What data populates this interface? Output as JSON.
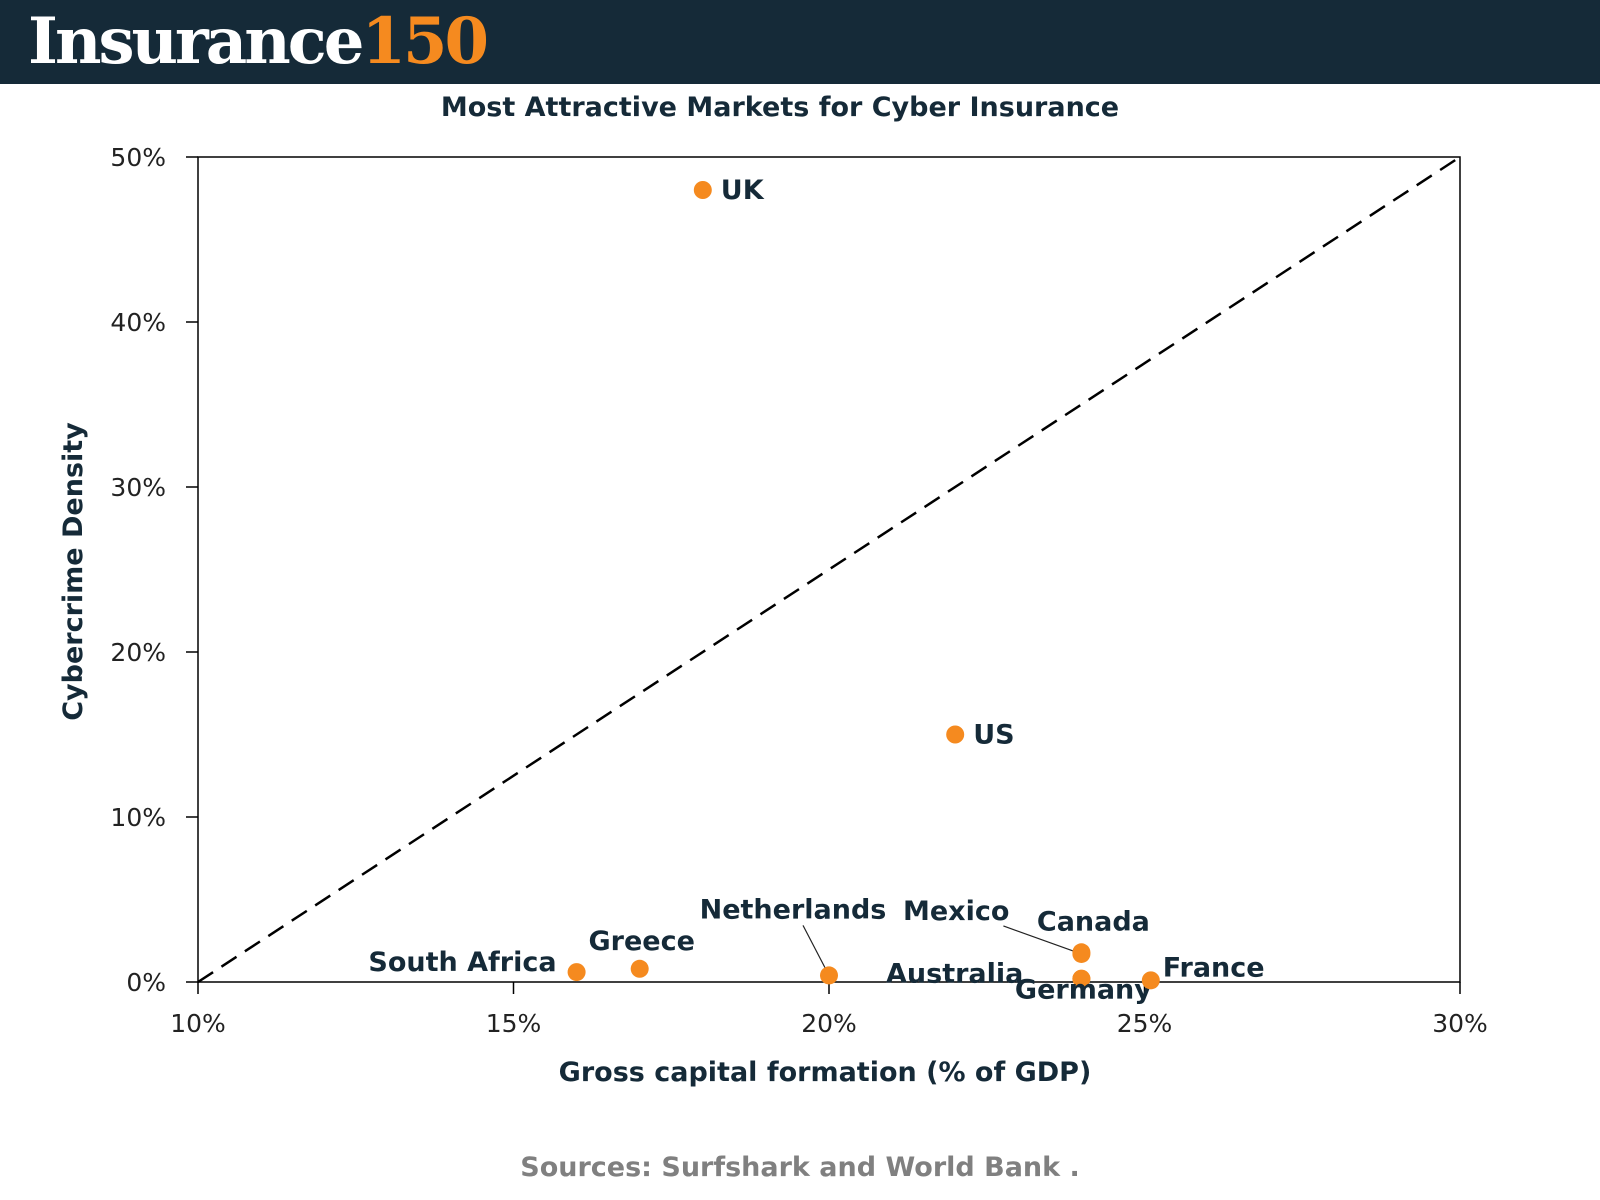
{
  "header": {
    "logo_word": "Insurance",
    "logo_number": "150",
    "background": "#152a38",
    "accent": "#f58a1f"
  },
  "source_text": "Sources: Surfshark and World Bank .",
  "chart_data": {
    "type": "scatter",
    "title": "Most Attractive Markets for Cyber Insurance",
    "xlabel": "Gross capital formation (% of GDP)",
    "ylabel": "Cybercrime Density",
    "xlim": [
      10,
      30
    ],
    "ylim": [
      0,
      50
    ],
    "x_ticks": [
      10,
      15,
      20,
      25,
      30
    ],
    "y_ticks": [
      0,
      10,
      20,
      30,
      40,
      50
    ],
    "x_tick_labels": [
      "10%",
      "15%",
      "20%",
      "25%",
      "30%"
    ],
    "y_tick_labels": [
      "0%",
      "10%",
      "20%",
      "30%",
      "40%",
      "50%"
    ],
    "grid": false,
    "point_color": "#f58a1f",
    "reference_line": {
      "style": "dashed",
      "from": [
        10,
        0
      ],
      "to": [
        30,
        50
      ]
    },
    "points": [
      {
        "label": "UK",
        "x": 18.0,
        "y": 48.0
      },
      {
        "label": "US",
        "x": 22.0,
        "y": 15.0
      },
      {
        "label": "South Africa",
        "x": 16.0,
        "y": 0.6
      },
      {
        "label": "Greece",
        "x": 17.0,
        "y": 0.8
      },
      {
        "label": "Netherlands",
        "x": 20.0,
        "y": 0.4
      },
      {
        "label": "Mexico",
        "x": 24.0,
        "y": 1.7
      },
      {
        "label": "Canada",
        "x": 24.0,
        "y": 1.8
      },
      {
        "label": "Australia",
        "x": 24.0,
        "y": 0.2
      },
      {
        "label": "Germany",
        "x": 24.0,
        "y": 0.2
      },
      {
        "label": "France",
        "x": 25.1,
        "y": 0.1
      }
    ]
  }
}
